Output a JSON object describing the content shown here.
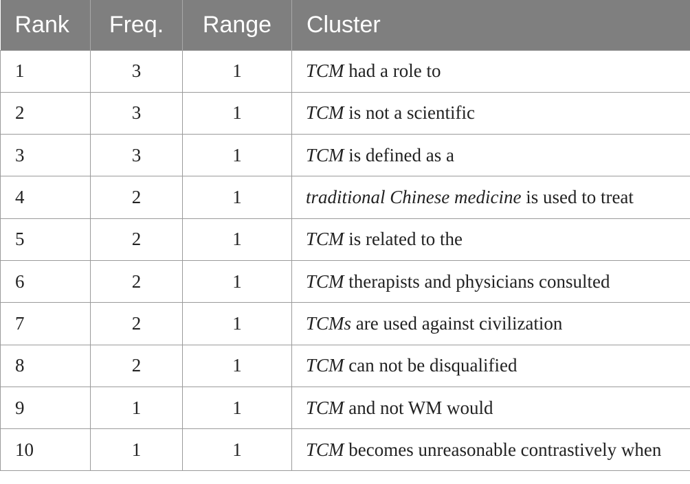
{
  "table": {
    "headers": [
      "Rank",
      "Freq.",
      "Range",
      "Cluster"
    ],
    "rows": [
      {
        "rank": "1",
        "freq": "3",
        "range": "1",
        "cluster_italic": "TCM",
        "cluster_rest": " had a role to"
      },
      {
        "rank": "2",
        "freq": "3",
        "range": "1",
        "cluster_italic": "TCM",
        "cluster_rest": " is not a scientific"
      },
      {
        "rank": "3",
        "freq": "3",
        "range": "1",
        "cluster_italic": "TCM",
        "cluster_rest": " is defined as a"
      },
      {
        "rank": "4",
        "freq": "2",
        "range": "1",
        "cluster_italic": "traditional Chinese medicine",
        "cluster_rest": " is used to treat"
      },
      {
        "rank": "5",
        "freq": "2",
        "range": "1",
        "cluster_italic": "TCM",
        "cluster_rest": " is related to the"
      },
      {
        "rank": "6",
        "freq": "2",
        "range": "1",
        "cluster_italic": "TCM",
        "cluster_rest": " therapists and physicians consulted"
      },
      {
        "rank": "7",
        "freq": "2",
        "range": "1",
        "cluster_italic": "TCMs",
        "cluster_rest": " are used against civilization"
      },
      {
        "rank": "8",
        "freq": "2",
        "range": "1",
        "cluster_italic": "TCM",
        "cluster_rest": " can not be disqualified"
      },
      {
        "rank": "9",
        "freq": "1",
        "range": "1",
        "cluster_italic": "TCM",
        "cluster_rest": " and not WM would"
      },
      {
        "rank": "10",
        "freq": "1",
        "range": "1",
        "cluster_italic": "TCM",
        "cluster_rest": " becomes unreasonable contrastively when"
      }
    ]
  }
}
